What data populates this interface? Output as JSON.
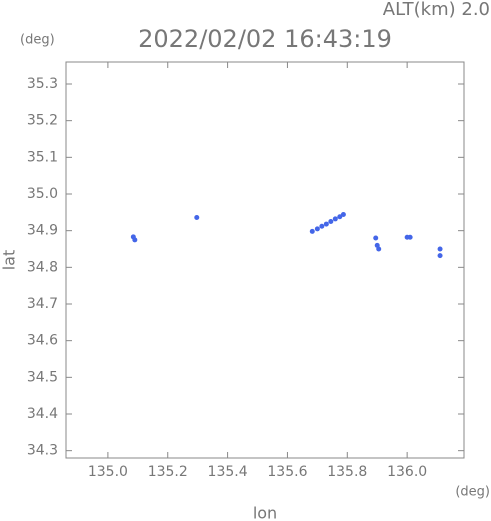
{
  "chart_data": {
    "type": "scatter",
    "alt_label": "ALT(km) 2.0",
    "title": "2022/02/02 16:43:19",
    "y_unit": "(deg)",
    "x_unit": "(deg)",
    "xlabel": "lon",
    "ylabel": "lat",
    "xlim": [
      134.86,
      136.19
    ],
    "ylim": [
      34.28,
      35.36
    ],
    "xticks": [
      {
        "value": 135.0,
        "label": "135.0"
      },
      135.2,
      135.4,
      135.6,
      135.8,
      {
        "value": 136.0,
        "label": "136.0"
      }
    ],
    "yticks": [
      34.3,
      34.4,
      34.5,
      34.6,
      34.7,
      34.8,
      34.9,
      {
        "value": 35.0,
        "label": "35.0"
      },
      35.1,
      35.2,
      35.3
    ],
    "series": [
      {
        "color": "#4466e8",
        "x": [
          135.085,
          135.09,
          135.297,
          135.683,
          135.7,
          135.715,
          135.73,
          135.745,
          135.76,
          135.775,
          135.787,
          135.895,
          135.9,
          135.905,
          136.0,
          136.01,
          136.11,
          136.11
        ],
        "y": [
          34.883,
          34.875,
          34.936,
          34.898,
          34.905,
          34.912,
          34.918,
          34.925,
          34.932,
          34.938,
          34.944,
          34.88,
          34.86,
          34.85,
          34.882,
          34.882,
          34.85,
          34.832
        ]
      }
    ]
  }
}
